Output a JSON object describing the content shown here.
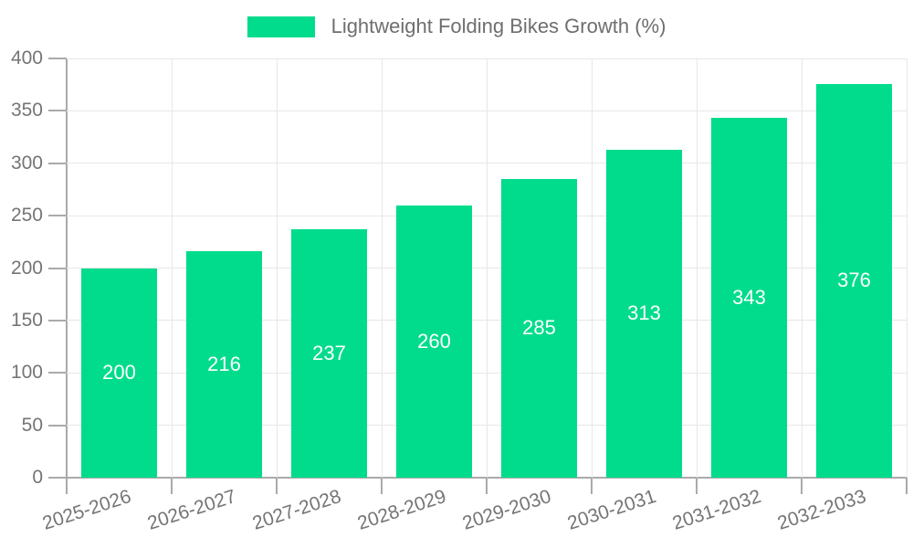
{
  "chart_data": {
    "type": "bar",
    "title": "Lightweight Folding Bikes Growth (%)",
    "series_name": "Lightweight Folding Bikes Growth (%)",
    "categories": [
      "2025-2026",
      "2026-2027",
      "2027-2028",
      "2028-2029",
      "2029-2030",
      "2030-2031",
      "2031-2032",
      "2032-2033"
    ],
    "values": [
      200,
      216,
      237,
      260,
      285,
      313,
      343,
      376
    ],
    "xlabel": "",
    "ylabel": "",
    "ylim": [
      0,
      400
    ],
    "yticks": [
      0,
      50,
      100,
      150,
      200,
      250,
      300,
      350,
      400
    ],
    "grid": true,
    "legend_position": "top",
    "value_labels": "inside-center-white"
  },
  "colors": {
    "bar": "#00dc8c",
    "grid": "#e7e7e7",
    "axis": "#aaaaaa",
    "tick_text": "#757575",
    "legend_text": "#6e6e6e",
    "value_label": "#ffffff",
    "background": "#ffffff"
  }
}
